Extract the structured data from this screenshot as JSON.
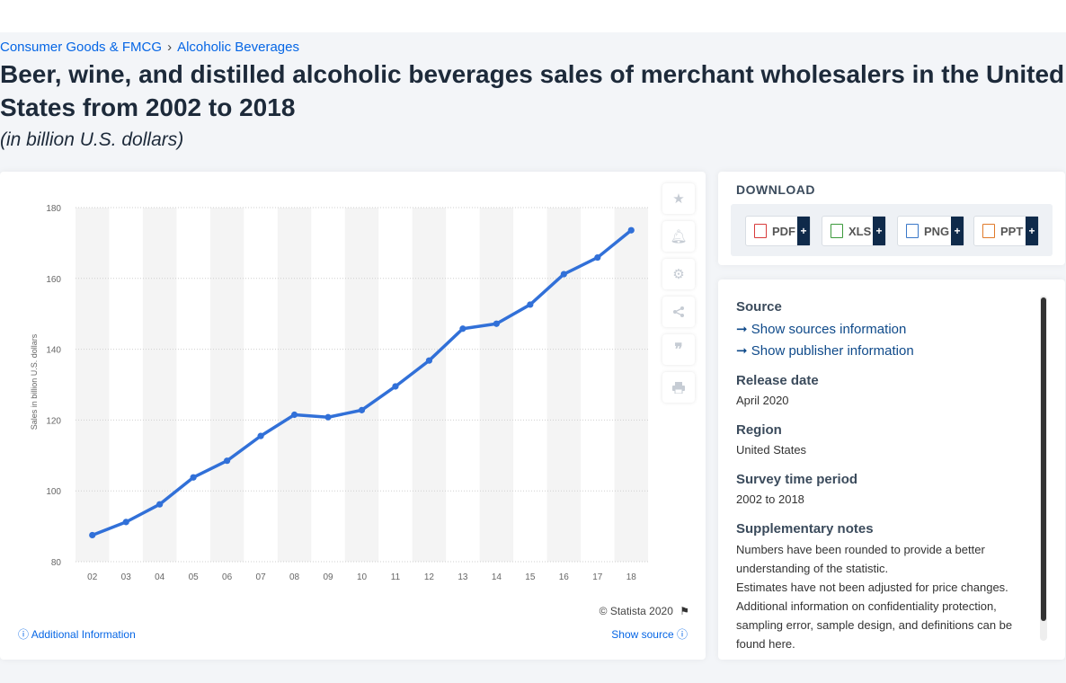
{
  "breadcrumbs": [
    "Consumer Goods & FMCG",
    "Alcoholic Beverages"
  ],
  "title": "Beer, wine, and distilled alcoholic beverages sales of merchant wholesalers in the United States from 2002 to 2018",
  "subtitle": "(in billion U.S. dollars)",
  "chart_data": {
    "type": "line",
    "categories": [
      "02",
      "03",
      "04",
      "05",
      "06",
      "07",
      "08",
      "09",
      "10",
      "11",
      "12",
      "13",
      "14",
      "15",
      "16",
      "17",
      "18"
    ],
    "series": [
      {
        "values": [
          87.5,
          91.2,
          96.2,
          103.8,
          108.5,
          115.5,
          121.5,
          120.8,
          122.8,
          129.5,
          136.8,
          145.8,
          147.2,
          152.6,
          161.2,
          165.9,
          173.6
        ]
      }
    ],
    "ylabel": "Sales in billion U.S. dollars",
    "xlabel": "",
    "ylim": [
      80,
      180
    ],
    "yticks": [
      80,
      100,
      120,
      140,
      160,
      180
    ],
    "grid": true,
    "line_color": "#3170d8"
  },
  "chart_footer": {
    "copyright": "© Statista 2020",
    "additional_info": "Additional Information",
    "show_source": "Show source"
  },
  "tools": [
    "star-icon",
    "bell-icon",
    "gear-icon",
    "share-icon",
    "quote-icon",
    "print-icon"
  ],
  "download": {
    "title": "DOWNLOAD",
    "buttons": [
      {
        "label": "PDF",
        "icon": "pdf-icon",
        "color": "#d83b3b"
      },
      {
        "label": "XLS",
        "icon": "xls-icon",
        "color": "#3c9a3c"
      },
      {
        "label": "PNG",
        "icon": "png-icon",
        "color": "#3a78c8"
      },
      {
        "label": "PPT",
        "icon": "ppt-icon",
        "color": "#e07a2a"
      }
    ],
    "plus": "+"
  },
  "info": {
    "source_label": "Source",
    "show_sources": "Show sources information",
    "show_publisher": "Show publisher information",
    "release_label": "Release date",
    "release_value": "April 2020",
    "region_label": "Region",
    "region_value": "United States",
    "period_label": "Survey time period",
    "period_value": "2002 to 2018",
    "notes_label": "Supplementary notes",
    "notes_1": "Numbers have been rounded to provide a better understanding of the statistic.",
    "notes_2": "Estimates have not been adjusted for price changes. Additional information on confidentiality protection, sampling error, sample design, and definitions can be found here."
  }
}
